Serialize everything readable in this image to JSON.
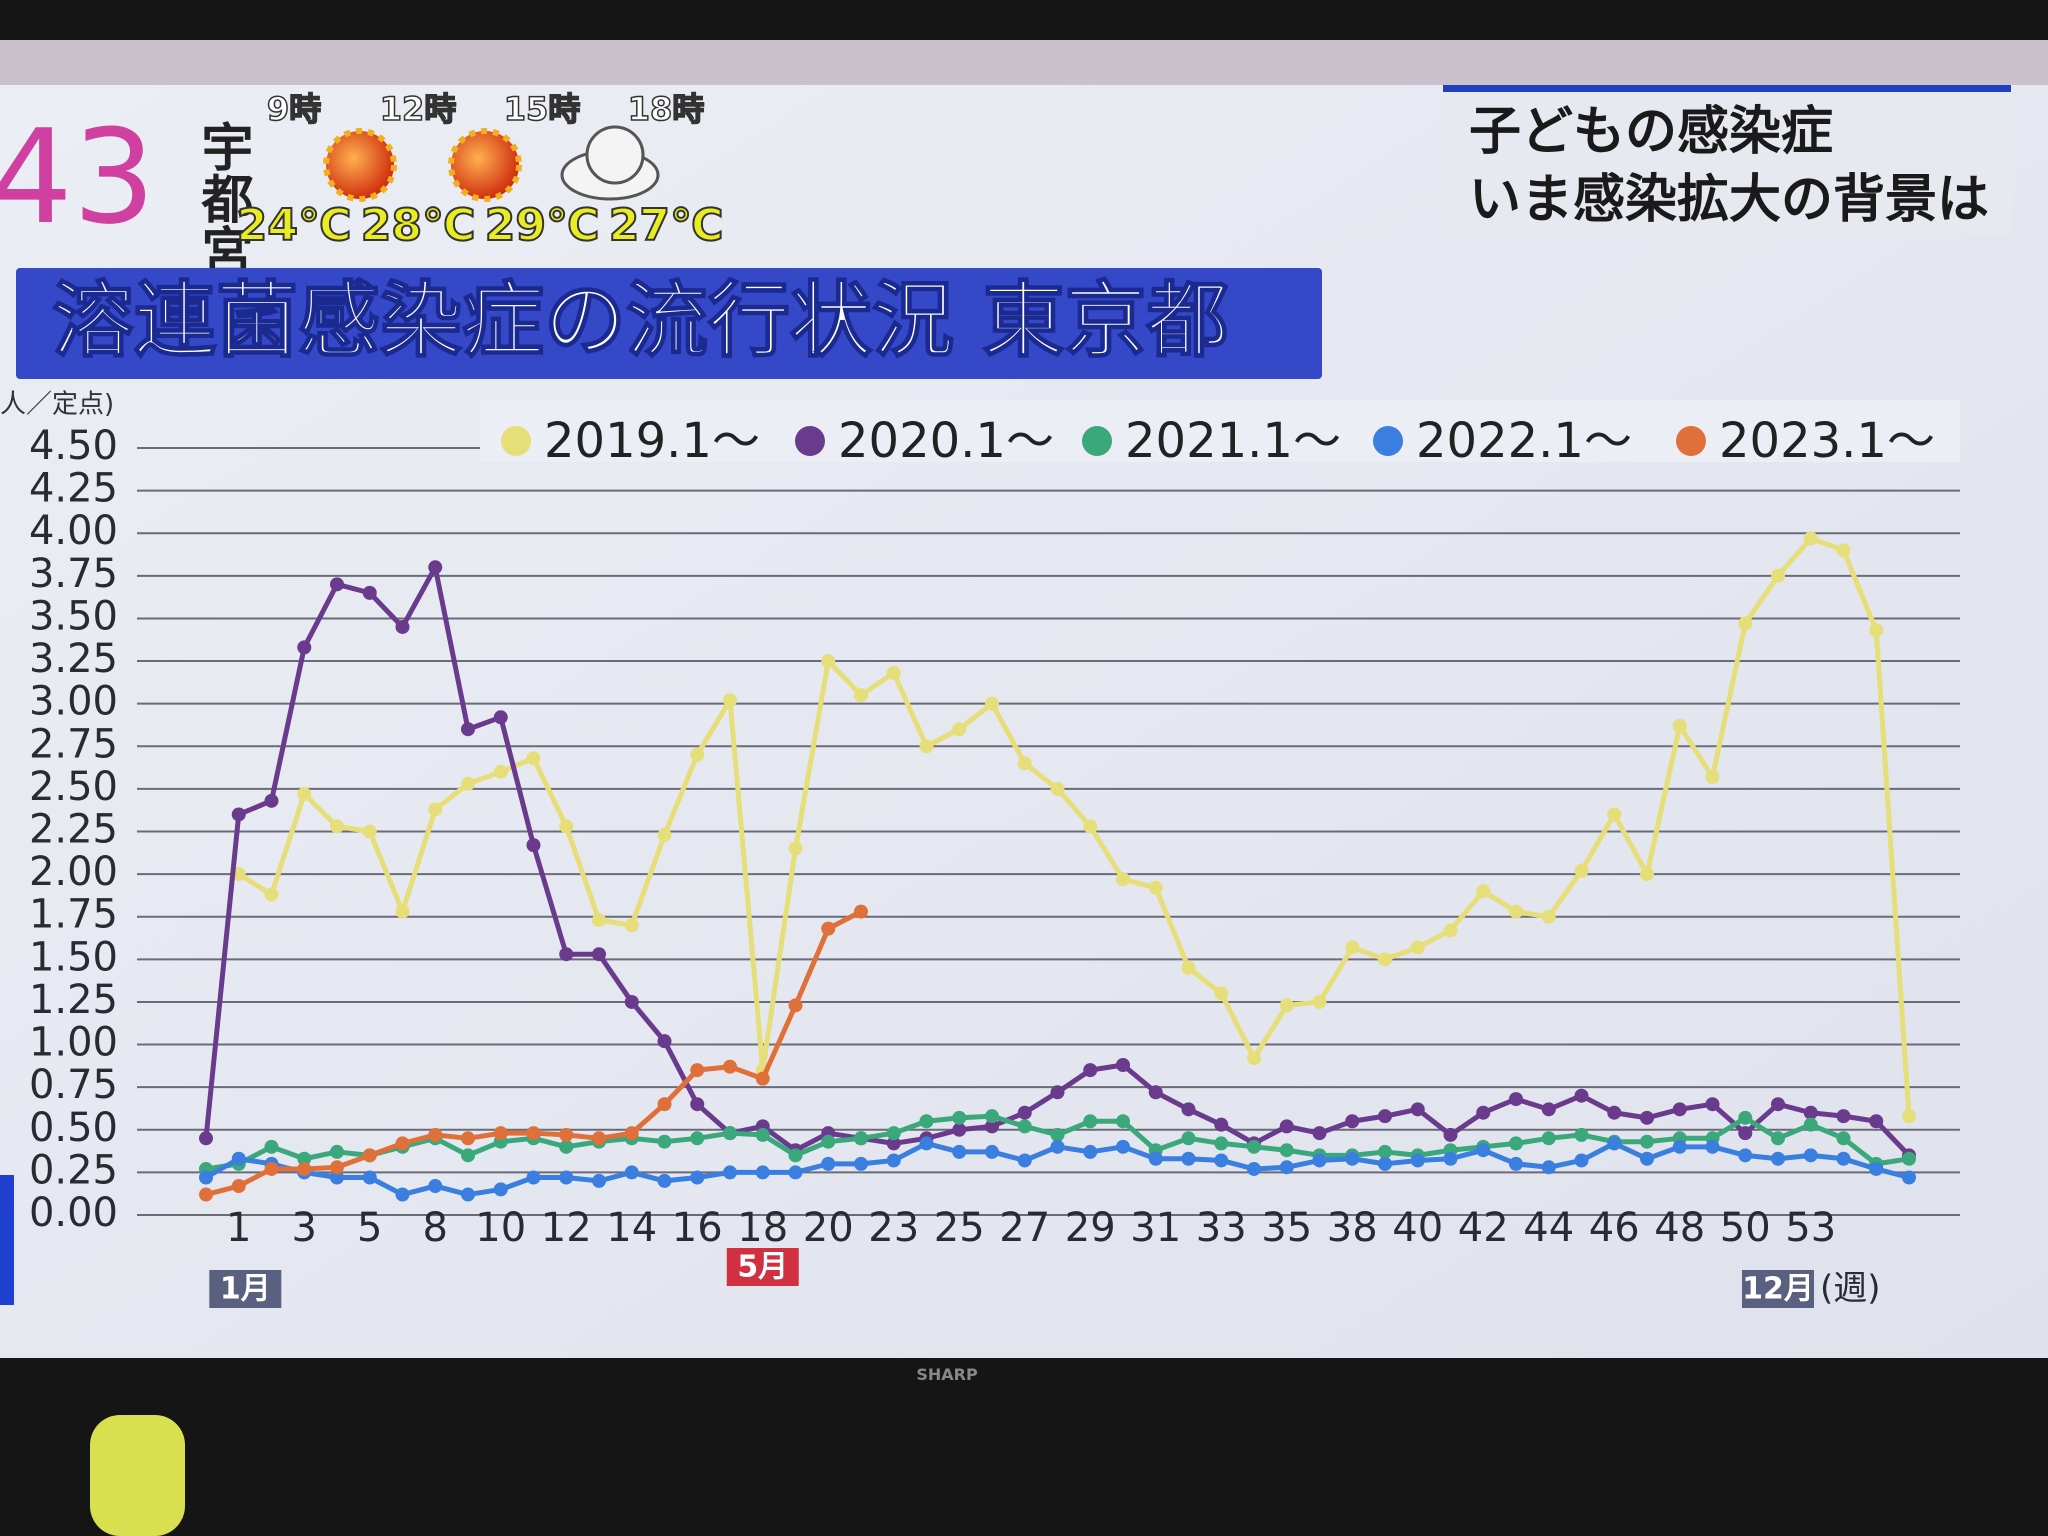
{
  "header": {
    "channel_number": "43",
    "city": "宇都宮",
    "forecast": [
      {
        "time": "9時",
        "temp": "24℃"
      },
      {
        "time": "12時",
        "temp": "28℃"
      },
      {
        "time": "15時",
        "temp": "29℃"
      },
      {
        "time": "18時",
        "temp": "27℃"
      }
    ]
  },
  "headline": [
    "子どもの感染症",
    "いま感染拡大の背景は"
  ],
  "tv_brand": "SHARP",
  "chart_data": {
    "type": "line",
    "title": "溶連菌感染症の流行状況 東京都",
    "y_label": "人／定点)",
    "x_unit": "(週)",
    "month_labels": [
      "1月",
      "5月",
      "12月"
    ],
    "categories": [
      null,
      "1",
      null,
      "3",
      null,
      "5",
      null,
      "8",
      null,
      "10",
      null,
      "12",
      null,
      "14",
      null,
      "16",
      null,
      "18",
      null,
      "20",
      null,
      "23",
      null,
      "25",
      null,
      "27",
      null,
      "29",
      null,
      "31",
      null,
      "33",
      null,
      "35",
      null,
      "38",
      null,
      "40",
      null,
      "42",
      null,
      "44",
      null,
      "46",
      null,
      "48",
      null,
      "50",
      null,
      "53",
      null,
      null,
      null
    ],
    "ylim": [
      0,
      4.5
    ],
    "yticks": [
      {
        "value": 0,
        "label": "0.00"
      },
      0.25,
      {
        "value": 0.5,
        "label": "0.50"
      },
      0.75,
      {
        "value": 1,
        "label": "1.00"
      },
      1.25,
      {
        "value": 1.5,
        "label": "1.50"
      },
      1.75,
      {
        "value": 2,
        "label": "2.00"
      },
      2.25,
      {
        "value": 2.5,
        "label": "2.50"
      },
      2.75,
      {
        "value": 3,
        "label": "3.00"
      },
      3.25,
      {
        "value": 3.5,
        "label": "3.50"
      },
      3.75,
      {
        "value": 4,
        "label": "4.00"
      },
      4.25,
      {
        "value": 4.5,
        "label": "4.50"
      }
    ],
    "grid": true,
    "series": [
      {
        "name": "2019.1～",
        "color": "#e6de78",
        "values": [
          null,
          2.0,
          1.88,
          2.47,
          2.28,
          2.25,
          1.78,
          2.38,
          2.53,
          2.6,
          2.68,
          2.28,
          1.73,
          1.7,
          2.23,
          2.7,
          3.02,
          0.85,
          2.15,
          3.25,
          3.05,
          3.18,
          2.75,
          2.85,
          3.0,
          2.65,
          2.5,
          2.28,
          1.97,
          1.92,
          1.45,
          1.3,
          0.92,
          1.23,
          1.25,
          1.57,
          1.5,
          1.57,
          1.67,
          1.9,
          1.78,
          1.75,
          2.02,
          2.35,
          2.0,
          2.87,
          2.57,
          3.47,
          3.75,
          3.97,
          3.9,
          3.43,
          0.58
        ]
      },
      {
        "name": "2020.1～",
        "color": "#6a3a8c",
        "values": [
          0.45,
          2.35,
          2.43,
          3.33,
          3.7,
          3.65,
          3.45,
          3.8,
          2.85,
          2.92,
          2.17,
          1.53,
          1.53,
          1.25,
          1.02,
          0.65,
          0.48,
          0.52,
          0.38,
          0.48,
          0.45,
          0.42,
          0.45,
          0.5,
          0.52,
          0.6,
          0.72,
          0.85,
          0.88,
          0.72,
          0.62,
          0.53,
          0.42,
          0.52,
          0.48,
          0.55,
          0.58,
          0.62,
          0.47,
          0.6,
          0.68,
          0.62,
          0.7,
          0.6,
          0.57,
          0.62,
          0.65,
          0.48,
          0.65,
          0.6,
          0.58,
          0.55,
          0.35
        ]
      },
      {
        "name": "2021.1～",
        "color": "#3aa87a",
        "values": [
          0.27,
          0.3,
          0.4,
          0.33,
          0.37,
          0.35,
          0.4,
          0.45,
          0.35,
          0.43,
          0.45,
          0.4,
          0.43,
          0.45,
          0.43,
          0.45,
          0.48,
          0.47,
          0.35,
          0.43,
          0.45,
          0.48,
          0.55,
          0.57,
          0.58,
          0.52,
          0.47,
          0.55,
          0.55,
          0.38,
          0.45,
          0.42,
          0.4,
          0.38,
          0.35,
          0.35,
          0.37,
          0.35,
          0.38,
          0.4,
          0.42,
          0.45,
          0.47,
          0.43,
          0.43,
          0.45,
          0.45,
          0.57,
          0.45,
          0.53,
          0.45,
          0.3,
          0.33
        ]
      },
      {
        "name": "2022.1～",
        "color": "#3a7fe0",
        "values": [
          0.22,
          0.33,
          0.3,
          0.25,
          0.22,
          0.22,
          0.12,
          0.17,
          0.12,
          0.15,
          0.22,
          0.22,
          0.2,
          0.25,
          0.2,
          0.22,
          0.25,
          0.25,
          0.25,
          0.3,
          0.3,
          0.32,
          0.42,
          0.37,
          0.37,
          0.32,
          0.4,
          0.37,
          0.4,
          0.33,
          0.33,
          0.32,
          0.27,
          0.28,
          0.32,
          0.33,
          0.3,
          0.32,
          0.33,
          0.38,
          0.3,
          0.28,
          0.32,
          0.42,
          0.33,
          0.4,
          0.4,
          0.35,
          0.33,
          0.35,
          0.33,
          0.27,
          0.22
        ]
      },
      {
        "name": "2023.1～",
        "color": "#e0703a",
        "values": [
          0.12,
          0.17,
          0.27,
          0.27,
          0.28,
          0.35,
          0.42,
          0.47,
          0.45,
          0.48,
          0.48,
          0.47,
          0.45,
          0.48,
          0.65,
          0.85,
          0.87,
          0.8,
          1.23,
          1.68,
          1.78,
          null,
          null,
          null,
          null,
          null,
          null,
          null,
          null,
          null,
          null,
          null,
          null,
          null,
          null,
          null,
          null,
          null,
          null,
          null,
          null,
          null,
          null,
          null,
          null,
          null,
          null,
          null,
          null,
          null,
          null,
          null,
          null
        ]
      }
    ]
  }
}
